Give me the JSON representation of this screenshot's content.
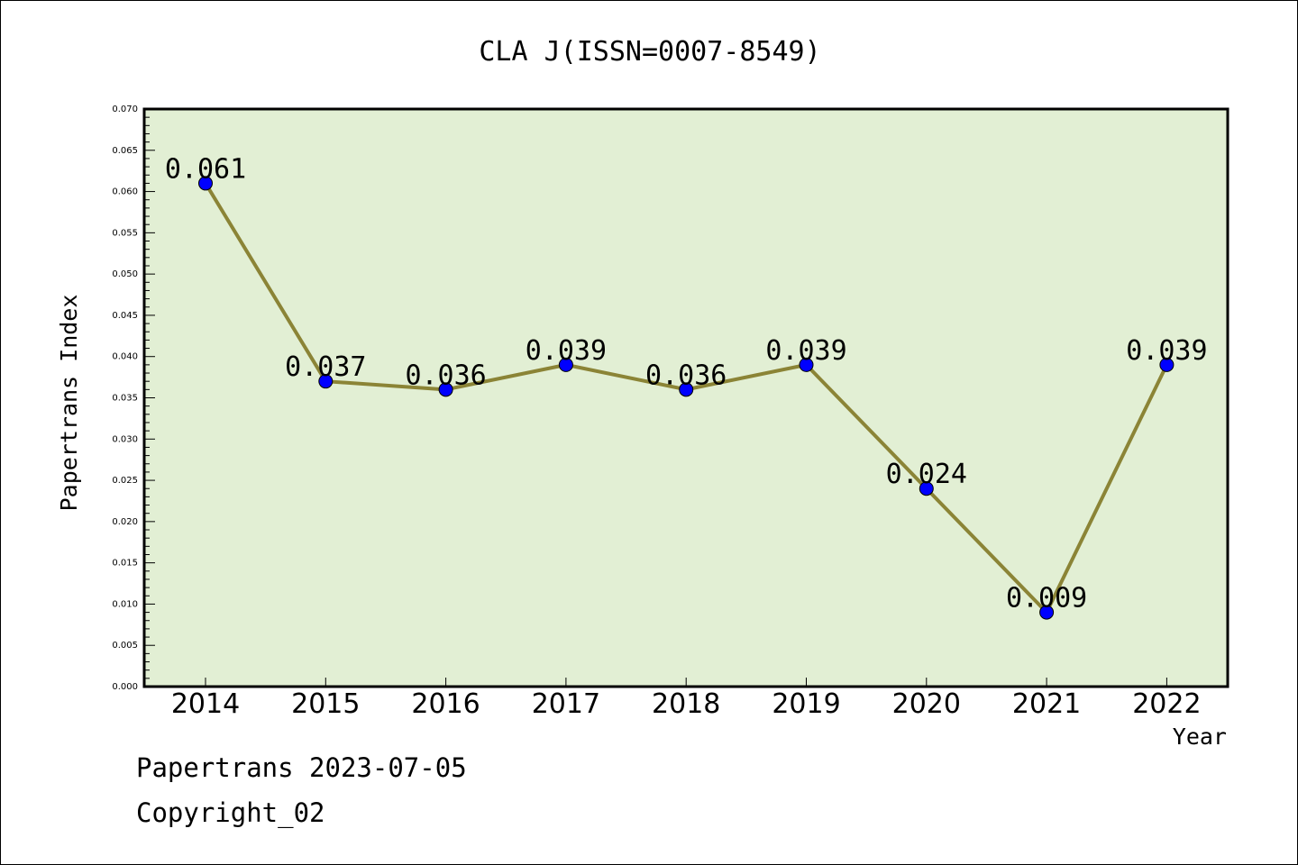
{
  "chart_data": {
    "type": "line",
    "title": "CLA J(ISSN=0007-8549)",
    "xlabel": "Year",
    "ylabel": "Papertrans Index",
    "categories": [
      "2014",
      "2015",
      "2016",
      "2017",
      "2018",
      "2019",
      "2020",
      "2021",
      "2022"
    ],
    "values": [
      0.061,
      0.037,
      0.036,
      0.039,
      0.036,
      0.039,
      0.024,
      0.009,
      0.039
    ],
    "data_labels": [
      "0.061",
      "0.037",
      "0.036",
      "0.039",
      "0.036",
      "0.039",
      "0.024",
      "0.009",
      "0.039"
    ],
    "ylim": [
      0,
      0.07
    ],
    "y_ticks": [
      "0.000",
      "0.005",
      "0.010",
      "0.015",
      "0.020",
      "0.025",
      "0.030",
      "0.035",
      "0.040",
      "0.045",
      "0.050",
      "0.055",
      "0.060",
      "0.065",
      "0.070"
    ],
    "grid": false,
    "colors": {
      "plot_background": "#e2efd4",
      "line": "#8b8436",
      "marker": "#0000ff"
    }
  },
  "footer": {
    "date_line": "Papertrans 2023-07-05",
    "copyright": "Copyright_02"
  }
}
